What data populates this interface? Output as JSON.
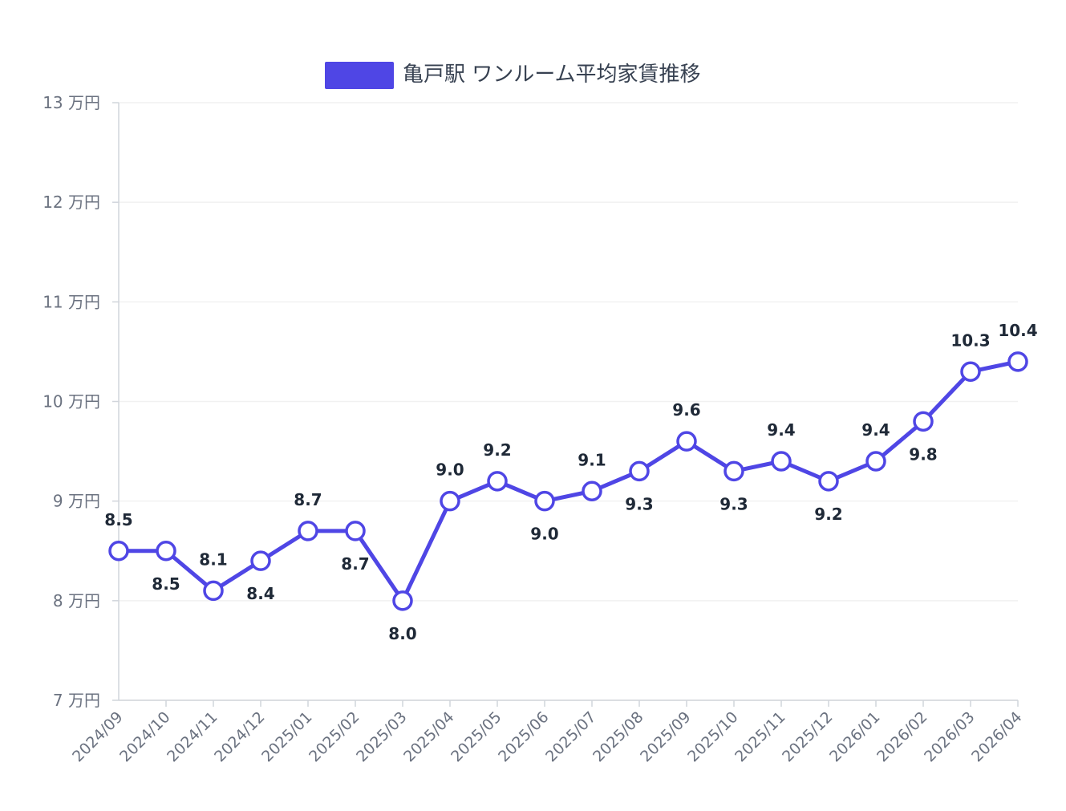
{
  "chart_data": {
    "type": "line",
    "categories": [
      "2024/09",
      "2024/10",
      "2024/11",
      "2024/12",
      "2025/01",
      "2025/02",
      "2025/03",
      "2025/04",
      "2025/05",
      "2025/06",
      "2025/07",
      "2025/08",
      "2025/09",
      "2025/10",
      "2025/11",
      "2025/12",
      "2026/01",
      "2026/02",
      "2026/03",
      "2026/04"
    ],
    "series": [
      {
        "name": "亀戸駅 ワンルーム平均家賃推移",
        "values": [
          8.5,
          8.5,
          8.1,
          8.4,
          8.7,
          8.7,
          8.0,
          9.0,
          9.2,
          9.0,
          9.1,
          9.3,
          9.6,
          9.3,
          9.4,
          9.2,
          9.4,
          9.8,
          10.3,
          10.4
        ],
        "data_labels": [
          "8.5",
          "8.5",
          "8.1",
          "8.4",
          "8.7",
          "8.7",
          "8.0",
          "9.0",
          "9.2",
          "9.0",
          "9.1",
          "9.3",
          "9.6",
          "9.3",
          "9.4",
          "9.2",
          "9.4",
          "9.8",
          "10.3",
          "10.4"
        ],
        "label_position": [
          "above",
          "below",
          "above",
          "below",
          "above",
          "below",
          "below",
          "above",
          "above",
          "below",
          "above",
          "below",
          "above",
          "below",
          "above",
          "below",
          "above",
          "below",
          "above",
          "above"
        ]
      }
    ],
    "title": "",
    "xlabel": "",
    "ylabel": "",
    "ylim": [
      7,
      13
    ],
    "y_ticks": [
      7,
      8,
      9,
      10,
      11,
      12,
      13
    ],
    "y_tick_labels": [
      "7 万円",
      "8 万円",
      "9 万円",
      "10 万円",
      "11 万円",
      "12 万円",
      "13 万円"
    ],
    "grid": true,
    "legend_position": "top-center",
    "colors": {
      "line": "#4f46e5",
      "point_fill": "#ffffff",
      "grid": "#f1f1f1",
      "axis": "#d1d5db"
    }
  }
}
